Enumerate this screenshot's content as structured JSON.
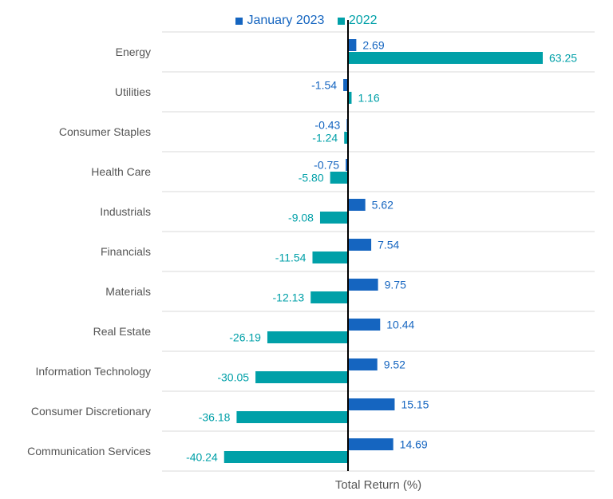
{
  "colors": {
    "jan2023": "#1565c0",
    "y2022": "#00a0a8",
    "grid": "#d9d9d9",
    "axis": "#000000",
    "label": "#555555",
    "xlabel": "#555555"
  },
  "chart_data": {
    "type": "bar",
    "orientation": "horizontal",
    "title": "",
    "xlabel": "Total Return (%)",
    "ylabel": "",
    "xlim": [
      -50,
      70
    ],
    "grid": true,
    "legend_position": "top",
    "categories": [
      "Energy",
      "Utilities",
      "Consumer Staples",
      "Health Care",
      "Industrials",
      "Financials",
      "Materials",
      "Real Estate",
      "Information Technology",
      "Consumer Discretionary",
      "Communication Services"
    ],
    "series": [
      {
        "name": "January 2023",
        "color": "#1565c0",
        "values": [
          2.69,
          -1.54,
          -0.43,
          -0.75,
          5.62,
          7.54,
          9.75,
          10.44,
          9.52,
          15.15,
          14.69
        ],
        "labels": [
          "2.69",
          "-1.54",
          "-0.43",
          "-0.75",
          "5.62",
          "7.54",
          "9.75",
          "10.44",
          "9.52",
          "15.15",
          "14.69"
        ]
      },
      {
        "name": "2022",
        "color": "#00a0a8",
        "values": [
          63.25,
          1.16,
          -1.24,
          -5.8,
          -9.08,
          -11.54,
          -12.13,
          -26.19,
          -30.05,
          -36.18,
          -40.24
        ],
        "labels": [
          "63.25",
          "1.16",
          "-1.24",
          "-5.80",
          "-9.08",
          "-11.54",
          "-12.13",
          "-26.19",
          "-30.05",
          "-36.18",
          "-40.24"
        ]
      }
    ]
  }
}
